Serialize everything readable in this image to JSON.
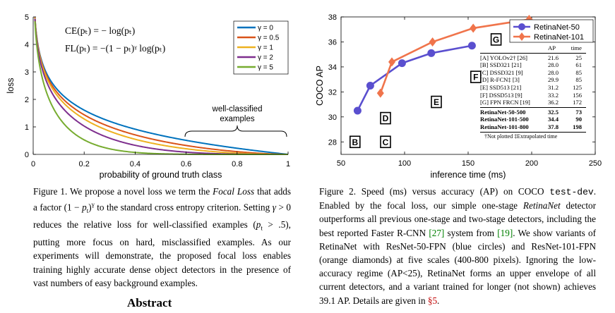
{
  "figure1": {
    "chart_data": {
      "type": "line",
      "xlabel": "probability of ground truth class",
      "ylabel": "loss",
      "xlim": [
        0,
        1
      ],
      "ylim": [
        0,
        5
      ],
      "x_ticks": [
        "0",
        "0.2",
        "0.4",
        "0.6",
        "0.8",
        "1"
      ],
      "y_ticks": [
        "0",
        "1",
        "2",
        "3",
        "4",
        "5"
      ],
      "series": [
        {
          "name": "γ = 0",
          "gamma": 0,
          "color": "#0072bd"
        },
        {
          "name": "γ = 0.5",
          "gamma": 0.5,
          "color": "#d95319"
        },
        {
          "name": "γ = 1",
          "gamma": 1,
          "color": "#edb120"
        },
        {
          "name": "γ = 2",
          "gamma": 2,
          "color": "#7e2f8e"
        },
        {
          "name": "γ = 5",
          "gamma": 5,
          "color": "#77ac30"
        }
      ],
      "equations": [
        "CE(pₜ) = − log(pₜ)",
        "FL(pₜ) = −(1 − pₜ)ᵞ log(pₜ)"
      ],
      "annotation": [
        "well-classified",
        "examples"
      ],
      "legend": "top-right",
      "grid": false
    }
  },
  "figure2": {
    "chart_data": {
      "type": "scatter",
      "xlabel": "inference time (ms)",
      "ylabel": "COCO AP",
      "xlim": [
        50,
        250
      ],
      "ylim": [
        27,
        38
      ],
      "x_ticks": [
        50,
        100,
        150,
        200,
        250
      ],
      "y_ticks": [
        28,
        30,
        32,
        34,
        36,
        38
      ],
      "series": [
        {
          "name": "RetinaNet-50",
          "color": "#5a4fcf",
          "marker": "circle",
          "x": [
            63,
            73,
            98,
            121,
            153
          ],
          "y": [
            30.5,
            32.5,
            34.3,
            35.1,
            35.7
          ]
        },
        {
          "name": "RetinaNet-101",
          "color": "#f0744b",
          "marker": "diamond",
          "x": [
            81,
            90,
            122,
            154,
            198
          ],
          "y": [
            31.9,
            34.4,
            36.0,
            37.1,
            37.8
          ]
        }
      ],
      "markers": [
        {
          "label": "B",
          "x": 61,
          "y": 28.0
        },
        {
          "label": "C",
          "x": 85,
          "y": 28.0
        },
        {
          "label": "D",
          "x": 85,
          "y": 29.9
        },
        {
          "label": "E",
          "x": 125,
          "y": 31.2
        },
        {
          "label": "F",
          "x": 156,
          "y": 33.2
        },
        {
          "label": "G",
          "x": 172,
          "y": 36.2
        }
      ],
      "legend": "top-right",
      "grid": false
    },
    "table": {
      "header": [
        "AP",
        "time"
      ],
      "rows": [
        {
          "name": "[A] YOLOv2† [26]",
          "ap": "21.6",
          "time": "25"
        },
        {
          "name": "[B] SSD321 [21]",
          "ap": "28.0",
          "time": "61"
        },
        {
          "name": "[C] DSSD321 [9]",
          "ap": "28.0",
          "time": "85"
        },
        {
          "name": "[D] R-FCN‡ [3]",
          "ap": "29.9",
          "time": "85"
        },
        {
          "name": "[E] SSD513 [21]",
          "ap": "31.2",
          "time": "125"
        },
        {
          "name": "[F] DSSD513 [9]",
          "ap": "33.2",
          "time": "156"
        },
        {
          "name": "[G] FPN FRCN [19]",
          "ap": "36.2",
          "time": "172"
        }
      ],
      "bold_rows": [
        {
          "name": "RetinaNet-50-500",
          "ap": "32.5",
          "time": "73"
        },
        {
          "name": "RetinaNet-101-500",
          "ap": "34.4",
          "time": "90"
        },
        {
          "name": "RetinaNet-101-800",
          "ap": "37.8",
          "time": "198"
        }
      ],
      "note": "†Not plotted  ‡Extrapolated time"
    }
  },
  "captions": {
    "figure1": "Figure 1. We propose a novel loss we term the Focal Loss that adds a factor (1 − pₜ)ᵞ to the standard cross entropy criterion. Setting γ > 0 reduces the relative loss for well-classified examples (pₜ > .5), putting more focus on hard, misclassified examples. As our experiments will demonstrate, the proposed focal loss enables training highly accurate dense object detectors in the presence of vast numbers of easy background examples.",
    "figure2": "Figure 2. Speed (ms) versus accuracy (AP) on COCO test-dev. Enabled by the focal loss, our simple one-stage RetinaNet detector outperforms all previous one-stage and two-stage detectors, including the best reported Faster R-CNN [27] system from [19]. We show variants of RetinaNet with ResNet-50-FPN (blue circles) and ResNet-101-FPN (orange diamonds) at five scales (400-800 pixels). Ignoring the low-accuracy regime (AP<25), RetinaNet forms an upper envelope of all current detectors, and a variant trained for longer (not shown) achieves 39.1 AP. Details are given in §5."
  },
  "abstract_heading": "Abstract"
}
